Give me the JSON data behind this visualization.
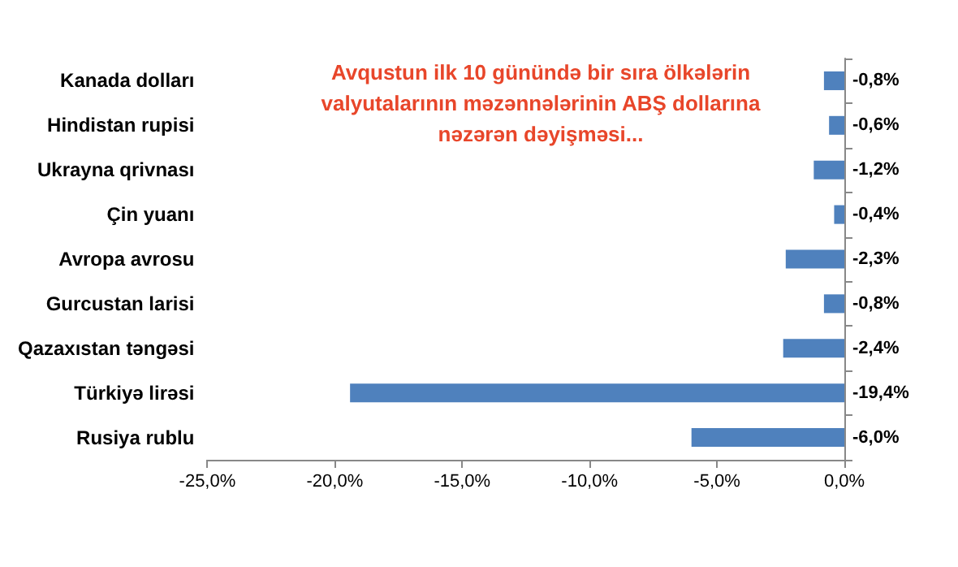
{
  "chart_data": {
    "type": "bar",
    "orientation": "horizontal",
    "title": "Avqustun ilk 10 günündə bir sıra ölkələrin\nvalyutalarının məzənnələrinin ABŞ dollarına\nnəzərən dəyişməsi...",
    "categories": [
      "Kanada dolları",
      "Hindistan rupisi",
      "Ukrayna qrivnası",
      "Çin yuanı",
      "Avropa avrosu",
      "Gurcustan larisi",
      "Qazaxıstan təngəsi",
      "Türkiyə lirəsi",
      "Rusiya rublu"
    ],
    "values": [
      -0.8,
      -0.6,
      -1.2,
      -0.4,
      -2.3,
      -0.8,
      -2.4,
      -19.4,
      -6.0
    ],
    "value_labels": [
      "-0,8%",
      "-0,6%",
      "-1,2%",
      "-0,4%",
      "-2,3%",
      "-0,8%",
      "-2,4%",
      "-19,4%",
      "-6,0%"
    ],
    "color": "#4f81bd",
    "xlim": [
      -25,
      0
    ],
    "xticks": [
      {
        "value": -25,
        "label": "-25,0%"
      },
      {
        "value": -20,
        "label": "-20,0%"
      },
      {
        "value": -15,
        "label": "-15,0%"
      },
      {
        "value": -10,
        "label": "-10,0%"
      },
      {
        "value": -5,
        "label": "-5,0%"
      },
      {
        "value": 0,
        "label": "0,0%"
      }
    ],
    "grid": false
  }
}
